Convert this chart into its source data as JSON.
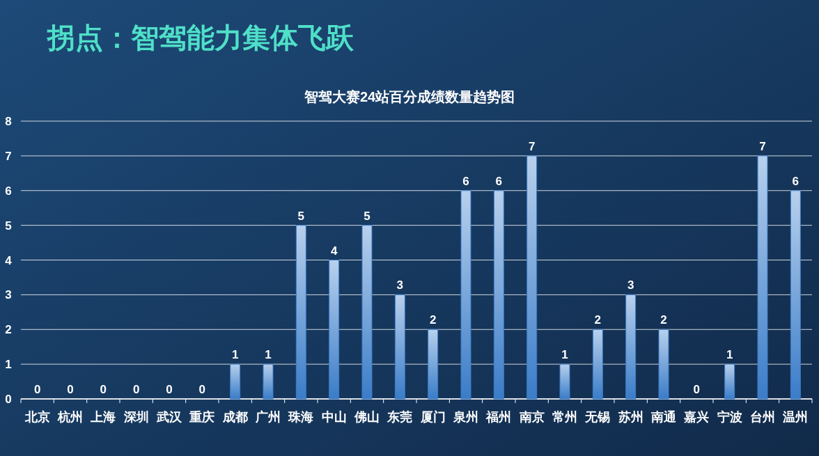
{
  "chart_data": {
    "type": "bar",
    "title": "拐点：智驾能力集体飞跃",
    "subtitle": "智驾大赛24站百分成绩数量趋势图",
    "categories": [
      "北京",
      "杭州",
      "上海",
      "深圳",
      "武汉",
      "重庆",
      "成都",
      "广州",
      "珠海",
      "中山",
      "佛山",
      "东莞",
      "厦门",
      "泉州",
      "福州",
      "南京",
      "常州",
      "无锡",
      "苏州",
      "南通",
      "嘉兴",
      "宁波",
      "台州",
      "温州"
    ],
    "values": [
      0,
      0,
      0,
      0,
      0,
      0,
      1,
      1,
      5,
      4,
      5,
      3,
      2,
      6,
      6,
      7,
      1,
      2,
      3,
      2,
      0,
      1,
      7,
      6
    ],
    "color": "#3a7cc8",
    "ylim": [
      0,
      8
    ],
    "yticks": [
      0,
      1,
      2,
      3,
      4,
      5,
      6,
      7,
      8
    ],
    "grid": "y",
    "data_labels": true
  }
}
